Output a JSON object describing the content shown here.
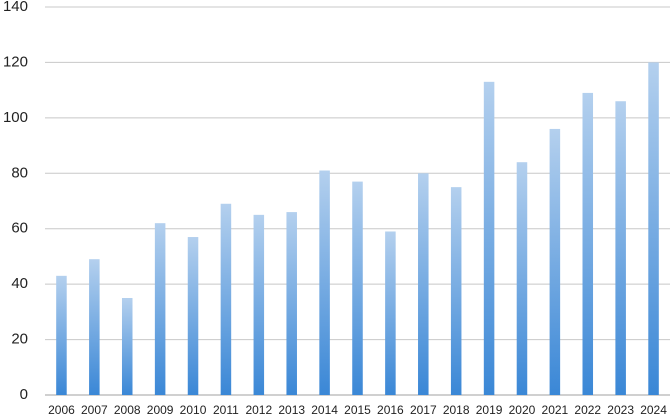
{
  "chart_data": {
    "type": "bar",
    "categories": [
      "2006",
      "2007",
      "2008",
      "2009",
      "2010",
      "2011",
      "2012",
      "2013",
      "2014",
      "2015",
      "2016",
      "2017",
      "2018",
      "2019",
      "2020",
      "2021",
      "2022",
      "2023",
      "2024"
    ],
    "values": [
      43,
      49,
      35,
      62,
      57,
      69,
      65,
      66,
      81,
      77,
      59,
      80,
      75,
      113,
      84,
      96,
      109,
      106,
      120
    ],
    "color": "#3a87d6",
    "ylim": [
      0,
      140
    ],
    "yticks": [
      0,
      20,
      40,
      60,
      80,
      100,
      120,
      140
    ],
    "grid": true
  }
}
